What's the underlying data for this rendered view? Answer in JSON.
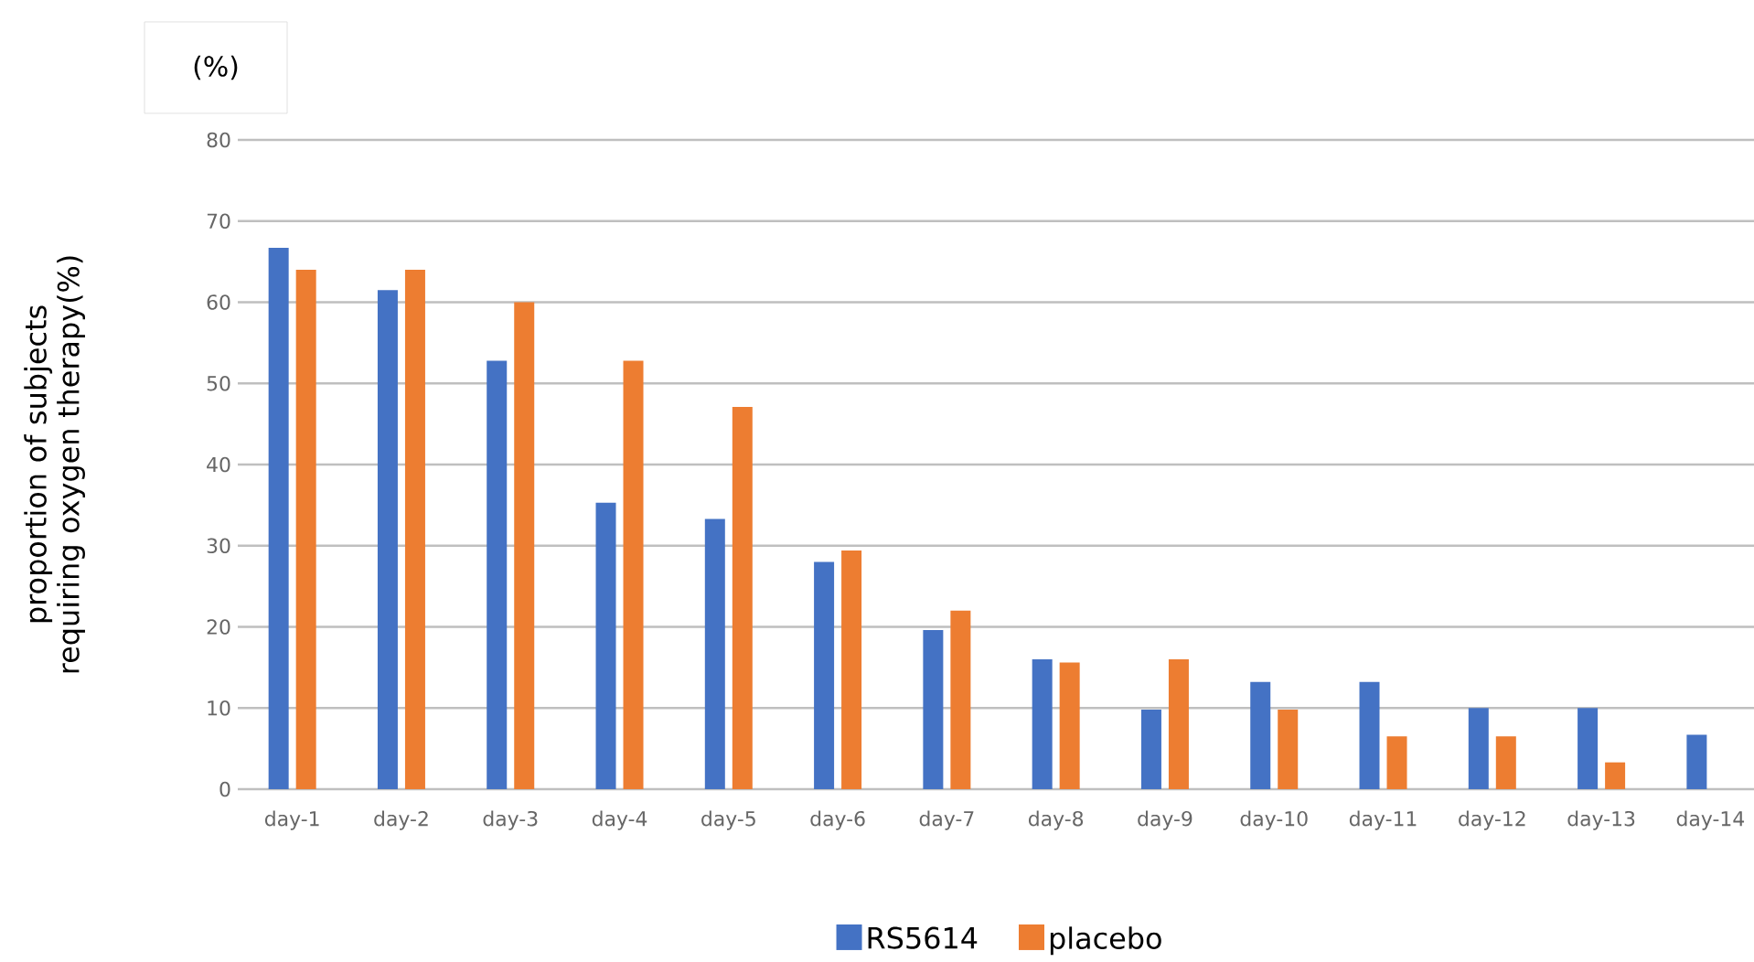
{
  "chart_data": {
    "type": "bar",
    "ylabel": "proportion of subjects requiring oxygen therapy(%)",
    "annotations": [
      "(%)"
    ],
    "categories": [
      "day-1",
      "day-2",
      "day-3",
      "day-4",
      "day-5",
      "day-6",
      "day-7",
      "day-8",
      "day-9",
      "day-10",
      "day-11",
      "day-12",
      "day-13",
      "day-14"
    ],
    "series": [
      {
        "name": "RS5614",
        "color": "#4472c4",
        "values": [
          66.7,
          61.5,
          52.8,
          35.3,
          33.3,
          28.0,
          19.6,
          16.0,
          9.8,
          13.2,
          13.2,
          10.0,
          10.0,
          6.7
        ]
      },
      {
        "name": "placebo",
        "color": "#ed7d31",
        "values": [
          64.0,
          64.0,
          60.0,
          52.8,
          47.1,
          29.4,
          22.0,
          15.6,
          16.0,
          9.8,
          6.5,
          6.5,
          3.3,
          null
        ]
      }
    ],
    "ylim": [
      0,
      80
    ],
    "yticks": [
      0,
      10,
      20,
      30,
      40,
      50,
      60,
      70,
      80
    ],
    "grid": "y",
    "legend": "bottom"
  }
}
